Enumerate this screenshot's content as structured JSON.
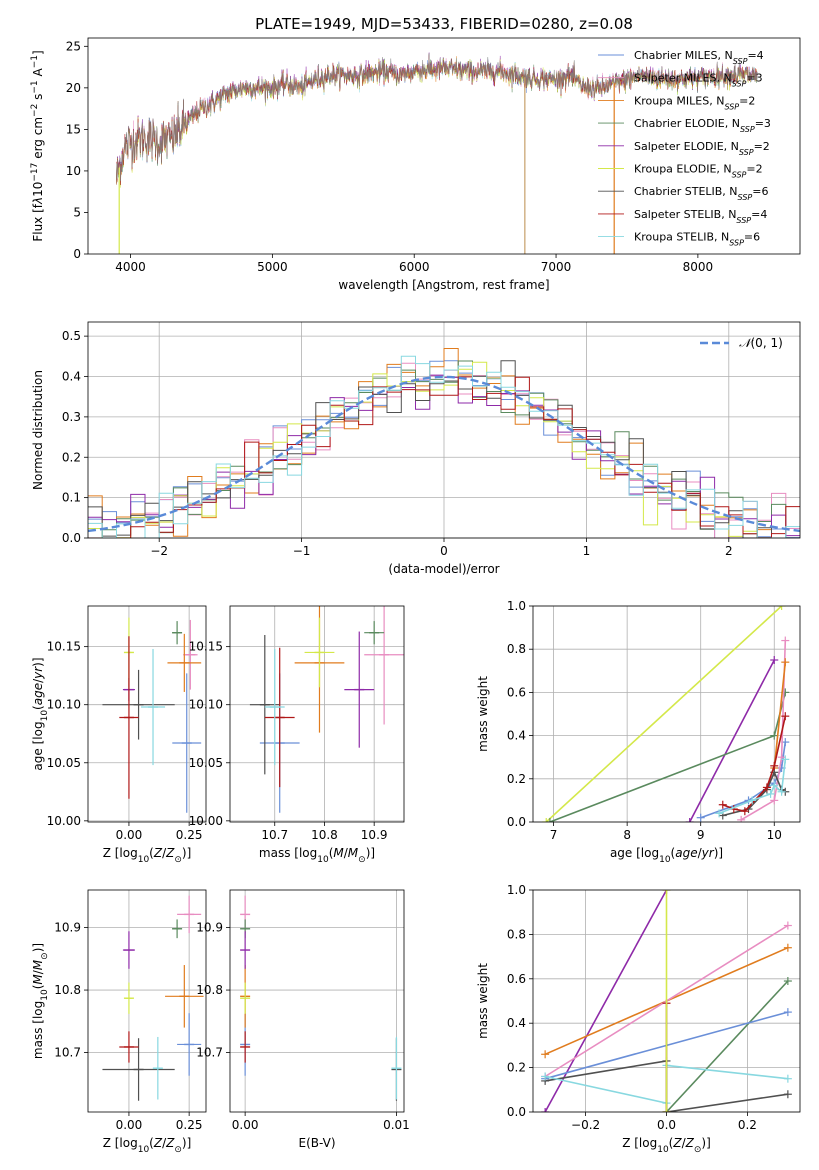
{
  "title": "PLATE=1949, MJD=53433, FIBERID=0280, z=0.08",
  "colors": {
    "Chabrier MILES": "#6a8fd8",
    "Salpeter MILES": "#e88dc1",
    "Kroupa MILES": "#e07c1e",
    "Chabrier ELODIE": "#5a8a5e",
    "Salpeter ELODIE": "#8e2aa8",
    "Kroupa ELODIE": "#d4e84a",
    "Chabrier STELIB": "#505050",
    "Salpeter STELIB": "#b01818",
    "Kroupa STELIB": "#88d8e0"
  },
  "chart_data": [
    {
      "id": "spectrum",
      "type": "line",
      "xlabel": "wavelength [Angstrom, rest frame]",
      "ylabel_html": "Flux [f<tspan font-style='italic'>λ</tspan>10<tspan baseline-shift='super' font-size='9'>−17</tspan> erg cm<tspan baseline-shift='super' font-size='9'>−2</tspan> s<tspan baseline-shift='super' font-size='9'>−1</tspan> A<tspan baseline-shift='super' font-size='9'>−1</tspan>]",
      "xlim": [
        3700,
        8720
      ],
      "ylim": [
        0,
        26
      ],
      "xticks": [
        4000,
        5000,
        6000,
        7000,
        8000
      ],
      "yticks": [
        0,
        5,
        10,
        15,
        20,
        25
      ],
      "grid": false,
      "legend_position": "top-right",
      "legend": [
        {
          "label": "Chabrier MILES",
          "nssp": "4"
        },
        {
          "label": "Salpeter MILES",
          "nssp": "3"
        },
        {
          "label": "Kroupa MILES",
          "nssp": "2"
        },
        {
          "label": "Chabrier ELODIE",
          "nssp": "3"
        },
        {
          "label": "Salpeter ELODIE",
          "nssp": "2"
        },
        {
          "label": "Kroupa ELODIE",
          "nssp": "2"
        },
        {
          "label": "Chabrier STELIB",
          "nssp": "6"
        },
        {
          "label": "Salpeter STELIB",
          "nssp": "4"
        },
        {
          "label": "Kroupa STELIB",
          "nssp": "6"
        }
      ],
      "continuum": [
        [
          3900,
          9
        ],
        [
          3950,
          12.5
        ],
        [
          4000,
          13.5
        ],
        [
          4100,
          14
        ],
        [
          4200,
          13.5
        ],
        [
          4300,
          14
        ],
        [
          4400,
          16
        ],
        [
          4500,
          17.5
        ],
        [
          4600,
          18.5
        ],
        [
          4700,
          19.5
        ],
        [
          4800,
          20
        ],
        [
          4900,
          20
        ],
        [
          5000,
          20
        ],
        [
          5100,
          20.5
        ],
        [
          5200,
          20
        ],
        [
          5300,
          21
        ],
        [
          5400,
          21.5
        ],
        [
          5500,
          21.5
        ],
        [
          5600,
          21.5
        ],
        [
          5700,
          21.8
        ],
        [
          5800,
          22
        ],
        [
          5900,
          21.5
        ],
        [
          6000,
          22
        ],
        [
          6200,
          22.3
        ],
        [
          6400,
          22
        ],
        [
          6600,
          22
        ],
        [
          6800,
          21.2
        ],
        [
          7000,
          21
        ],
        [
          7100,
          21.5
        ],
        [
          7200,
          20
        ],
        [
          7300,
          19.8
        ],
        [
          7400,
          20.5
        ],
        [
          7600,
          21.5
        ],
        [
          7800,
          21
        ],
        [
          8000,
          21.2
        ],
        [
          8200,
          21.5
        ],
        [
          8400,
          21.5
        ]
      ],
      "dips": [
        [
          3920,
          0
        ],
        [
          6780,
          0
        ],
        [
          7410,
          0
        ]
      ]
    },
    {
      "id": "residuals",
      "type": "histogram",
      "xlabel": "(data-model)/error",
      "ylabel": "Normed distribution",
      "xlim": [
        -2.5,
        2.5
      ],
      "ylim": [
        0,
        0.535
      ],
      "xticks": [
        -2,
        -1,
        0,
        1,
        2
      ],
      "yticks": [
        0,
        0.1,
        0.2,
        0.3,
        0.4,
        0.5
      ],
      "grid": true,
      "bin_width": 0.1,
      "legend_position": "top-right",
      "reference_label": "N(0,1)",
      "reference_sigma": 1.0,
      "reference_label_html": "<tspan font-style='italic' font-family='DejaVu Serif, serif'>𝒩</tspan>(0, 1)"
    },
    {
      "id": "age-vs-Z",
      "type": "errorbar",
      "xlabel_html": "Z [log<tspan baseline-shift='sub' font-size='9'>10</tspan>(<tspan font-style='italic'>Z</tspan>/<tspan font-style='italic'>Z</tspan><tspan baseline-shift='sub' font-size='9'>⊙</tspan>)]",
      "ylabel_html": "age  [log<tspan baseline-shift='sub' font-size='9'>10</tspan>(<tspan font-style='italic'>age</tspan>/<tspan font-style='italic'>yr</tspan>)]",
      "xlim": [
        -0.17,
        0.32
      ],
      "ylim": [
        9.999,
        10.185
      ],
      "xticks": [
        0.0,
        0.25
      ],
      "yticks": [
        10.0,
        10.05,
        10.1,
        10.15
      ],
      "grid": true,
      "points": [
        {
          "model": "Chabrier MILES",
          "x": 0.24,
          "y": 10.067,
          "xerr": 0.06,
          "yerr": 0.06
        },
        {
          "model": "Salpeter MILES",
          "x": 0.255,
          "y": 10.143,
          "xerr": 0.03,
          "yerr": 0.03
        },
        {
          "model": "Kroupa MILES",
          "x": 0.23,
          "y": 10.136,
          "xerr": 0.07,
          "yerr": 0.025
        },
        {
          "model": "Chabrier ELODIE",
          "x": 0.2,
          "y": 10.162,
          "xerr": 0.02,
          "yerr": 0.01
        },
        {
          "model": "Salpeter ELODIE",
          "x": 0.0,
          "y": 10.113,
          "xerr": 0.025,
          "yerr": 0.01
        },
        {
          "model": "Kroupa ELODIE",
          "x": 0.0,
          "y": 10.145,
          "xerr": 0.01,
          "yerr": 0.03
        },
        {
          "model": "Chabrier STELIB",
          "x": 0.04,
          "y": 10.1,
          "xerr": 0.15,
          "yerr": 0.03
        },
        {
          "model": "Salpeter STELIB",
          "x": 0.0,
          "y": 10.089,
          "xerr": 0.04,
          "yerr": 0.07
        },
        {
          "model": "Kroupa STELIB",
          "x": 0.1,
          "y": 10.098,
          "xerr": 0.05,
          "yerr": 0.05
        }
      ]
    },
    {
      "id": "age-vs-mass",
      "type": "errorbar",
      "xlabel_html": "mass [log<tspan baseline-shift='sub' font-size='9'>10</tspan>(<tspan font-style='italic'>M</tspan>/<tspan font-style='italic'>M</tspan><tspan baseline-shift='sub' font-size='9'>⊙</tspan>)]",
      "xlim": [
        10.61,
        10.96
      ],
      "ylim": [
        9.999,
        10.185
      ],
      "xticks": [
        10.7,
        10.8,
        10.9
      ],
      "yticks": [
        10.0,
        10.05,
        10.1,
        10.15
      ],
      "grid": true,
      "points": [
        {
          "model": "Chabrier MILES",
          "x": 10.71,
          "y": 10.067,
          "xerr": 0.04,
          "yerr": 0.06
        },
        {
          "model": "Salpeter MILES",
          "x": 10.92,
          "y": 10.143,
          "xerr": 0.04,
          "yerr": 0.06
        },
        {
          "model": "Kroupa MILES",
          "x": 10.79,
          "y": 10.136,
          "xerr": 0.05,
          "yerr": 0.06
        },
        {
          "model": "Chabrier ELODIE",
          "x": 10.9,
          "y": 10.162,
          "xerr": 0.02,
          "yerr": 0.01
        },
        {
          "model": "Salpeter ELODIE",
          "x": 10.87,
          "y": 10.113,
          "xerr": 0.03,
          "yerr": 0.05
        },
        {
          "model": "Kroupa ELODIE",
          "x": 10.79,
          "y": 10.145,
          "xerr": 0.03,
          "yerr": 0.03
        },
        {
          "model": "Chabrier STELIB",
          "x": 10.68,
          "y": 10.1,
          "xerr": 0.03,
          "yerr": 0.06
        },
        {
          "model": "Salpeter STELIB",
          "x": 10.71,
          "y": 10.089,
          "xerr": 0.03,
          "yerr": 0.06
        },
        {
          "model": "Kroupa STELIB",
          "x": 10.7,
          "y": 10.098,
          "xerr": 0.02,
          "yerr": 0.05
        }
      ]
    },
    {
      "id": "weight-vs-age",
      "type": "line",
      "xlabel_html": "age  [log<tspan baseline-shift='sub' font-size='9'>10</tspan>(<tspan font-style='italic'>age</tspan>/<tspan font-style='italic'>yr</tspan>)]",
      "ylabel": "mass weight",
      "xlim": [
        6.72,
        10.35
      ],
      "ylim": [
        0,
        1
      ],
      "xticks": [
        7,
        8,
        9,
        10
      ],
      "yticks": [
        0.0,
        0.2,
        0.4,
        0.6,
        0.8,
        1.0
      ],
      "grid": true,
      "series": [
        {
          "model": "Kroupa ELODIE",
          "x": [
            6.9,
            10.1
          ],
          "y": [
            0.0,
            1.0
          ]
        },
        {
          "model": "Salpeter ELODIE",
          "x": [
            8.85,
            10.0
          ],
          "y": [
            0.0,
            0.75
          ]
        },
        {
          "model": "Chabrier ELODIE",
          "x": [
            6.95,
            10.0,
            10.15
          ],
          "y": [
            0.0,
            0.4,
            0.6
          ]
        },
        {
          "model": "Chabrier MILES",
          "x": [
            9.0,
            9.65,
            10.0,
            10.1,
            10.15
          ],
          "y": [
            0.02,
            0.1,
            0.18,
            0.25,
            0.37
          ]
        },
        {
          "model": "Salpeter MILES",
          "x": [
            9.55,
            10.0,
            10.1,
            10.15
          ],
          "y": [
            0.01,
            0.1,
            0.3,
            0.84
          ]
        },
        {
          "model": "Kroupa MILES",
          "x": [
            10.0,
            10.15
          ],
          "y": [
            0.25,
            0.74
          ]
        },
        {
          "model": "Chabrier STELIB",
          "x": [
            9.3,
            9.65,
            9.9,
            10.0,
            10.1,
            10.15
          ],
          "y": [
            0.03,
            0.06,
            0.15,
            0.23,
            0.15,
            0.14
          ]
        },
        {
          "model": "Salpeter STELIB",
          "x": [
            9.3,
            9.45,
            9.6,
            9.9,
            10.0,
            10.15
          ],
          "y": [
            0.08,
            0.06,
            0.05,
            0.16,
            0.26,
            0.49
          ]
        },
        {
          "model": "Kroupa STELIB",
          "x": [
            9.25,
            9.7,
            9.95,
            10.0,
            10.1,
            10.15
          ],
          "y": [
            0.04,
            0.1,
            0.13,
            0.17,
            0.14,
            0.29
          ]
        }
      ]
    },
    {
      "id": "mass-vs-Z",
      "type": "errorbar",
      "xlabel_html": "Z [log<tspan baseline-shift='sub' font-size='9'>10</tspan>(<tspan font-style='italic'>Z</tspan>/<tspan font-style='italic'>Z</tspan><tspan baseline-shift='sub' font-size='9'>⊙</tspan>)]",
      "ylabel_html": "mass [log<tspan baseline-shift='sub' font-size='9'>10</tspan>(<tspan font-style='italic'>M</tspan>/<tspan font-style='italic'>M</tspan><tspan baseline-shift='sub' font-size='9'>⊙</tspan>)]",
      "xlim": [
        -0.17,
        0.32
      ],
      "ylim": [
        10.605,
        10.96
      ],
      "xticks": [
        0.0,
        0.25
      ],
      "yticks": [
        10.7,
        10.8,
        10.9
      ],
      "grid": true,
      "points": [
        {
          "model": "Chabrier MILES",
          "x": 0.25,
          "y": 10.713,
          "xerr": 0.05,
          "yerr": 0.05
        },
        {
          "model": "Salpeter MILES",
          "x": 0.25,
          "y": 10.921,
          "xerr": 0.05,
          "yerr": 0.03
        },
        {
          "model": "Kroupa MILES",
          "x": 0.23,
          "y": 10.79,
          "xerr": 0.08,
          "yerr": 0.05
        },
        {
          "model": "Chabrier ELODIE",
          "x": 0.2,
          "y": 10.898,
          "xerr": 0.02,
          "yerr": 0.015
        },
        {
          "model": "Salpeter ELODIE",
          "x": 0.0,
          "y": 10.864,
          "xerr": 0.025,
          "yerr": 0.03
        },
        {
          "model": "Kroupa ELODIE",
          "x": 0.0,
          "y": 10.787,
          "xerr": 0.015,
          "yerr": 0.025
        },
        {
          "model": "Chabrier STELIB",
          "x": 0.04,
          "y": 10.673,
          "xerr": 0.15,
          "yerr": 0.05
        },
        {
          "model": "Salpeter STELIB",
          "x": 0.0,
          "y": 10.709,
          "xerr": 0.04,
          "yerr": 0.025
        },
        {
          "model": "Kroupa STELIB",
          "x": 0.12,
          "y": 10.675,
          "xerr": 0.01,
          "yerr": 0.05
        }
      ]
    },
    {
      "id": "mass-vs-ebv",
      "type": "errorbar",
      "xlabel": "E(B-V)",
      "xlim": [
        -0.001,
        0.0105
      ],
      "ylim": [
        10.605,
        10.96
      ],
      "xticks": [
        0.0,
        0.01
      ],
      "yticks": [
        10.7,
        10.8,
        10.9
      ],
      "grid": true,
      "points": [
        {
          "model": "Chabrier MILES",
          "x": 0.0,
          "y": 10.713,
          "xerr": 0.0,
          "yerr": 0.05
        },
        {
          "model": "Salpeter MILES",
          "x": 0.0,
          "y": 10.921,
          "xerr": 0.0,
          "yerr": 0.03
        },
        {
          "model": "Kroupa MILES",
          "x": 0.0,
          "y": 10.79,
          "xerr": 0.0,
          "yerr": 0.05
        },
        {
          "model": "Chabrier ELODIE",
          "x": 0.0,
          "y": 10.898,
          "xerr": 0.0,
          "yerr": 0.015
        },
        {
          "model": "Salpeter ELODIE",
          "x": 0.0,
          "y": 10.864,
          "xerr": 0.0,
          "yerr": 0.03
        },
        {
          "model": "Kroupa ELODIE",
          "x": 0.0,
          "y": 10.787,
          "xerr": 0.0,
          "yerr": 0.025
        },
        {
          "model": "Chabrier STELIB",
          "x": 0.01,
          "y": 10.673,
          "xerr": 0.0,
          "yerr": 0.05
        },
        {
          "model": "Salpeter STELIB",
          "x": 0.0,
          "y": 10.709,
          "xerr": 0.0,
          "yerr": 0.025
        },
        {
          "model": "Kroupa STELIB",
          "x": 0.01,
          "y": 10.675,
          "xerr": 0.0,
          "yerr": 0.05
        }
      ]
    },
    {
      "id": "weight-vs-Z",
      "type": "line",
      "xlabel_html": "Z [log<tspan baseline-shift='sub' font-size='9'>10</tspan>(<tspan font-style='italic'>Z</tspan>/<tspan font-style='italic'>Z</tspan><tspan baseline-shift='sub' font-size='9'>⊙</tspan>)]",
      "ylabel": "mass weight",
      "xlim": [
        -0.33,
        0.33
      ],
      "ylim": [
        0,
        1
      ],
      "xticks": [
        -0.2,
        0.0,
        0.2
      ],
      "yticks": [
        0.0,
        0.2,
        0.4,
        0.6,
        0.8,
        1.0
      ],
      "grid": true,
      "series": [
        {
          "model": "Salpeter ELODIE",
          "x": [
            -0.3,
            0.0
          ],
          "y": [
            0.0,
            1.0
          ]
        },
        {
          "model": "Kroupa MILES",
          "x": [
            -0.3,
            0.3
          ],
          "y": [
            0.26,
            0.74
          ]
        },
        {
          "model": "Salpeter MILES",
          "x": [
            -0.3,
            0.3
          ],
          "y": [
            0.16,
            0.84
          ]
        },
        {
          "model": "Chabrier ELODIE",
          "x": [
            0.0,
            0.3
          ],
          "y": [
            0.0,
            0.59
          ]
        },
        {
          "model": "Chabrier MILES",
          "x": [
            -0.3,
            0.3
          ],
          "y": [
            0.15,
            0.45
          ]
        },
        {
          "model": "Chabrier STELIB",
          "x": [
            -0.3,
            0.0,
            0.0,
            0.3
          ],
          "y": [
            0.14,
            0.23,
            0.0,
            0.08
          ]
        },
        {
          "model": "Kroupa STELIB",
          "x": [
            -0.3,
            0.0,
            0.0,
            0.3
          ],
          "y": [
            0.16,
            0.04,
            0.21,
            0.15
          ]
        },
        {
          "model": "Salpeter STELIB",
          "x": [
            0.0,
            0.0
          ],
          "y": [
            0.0,
            0.49
          ]
        },
        {
          "model": "Kroupa ELODIE",
          "x": [
            0.0,
            0.0
          ],
          "y": [
            0.0,
            1.0
          ]
        }
      ]
    }
  ]
}
